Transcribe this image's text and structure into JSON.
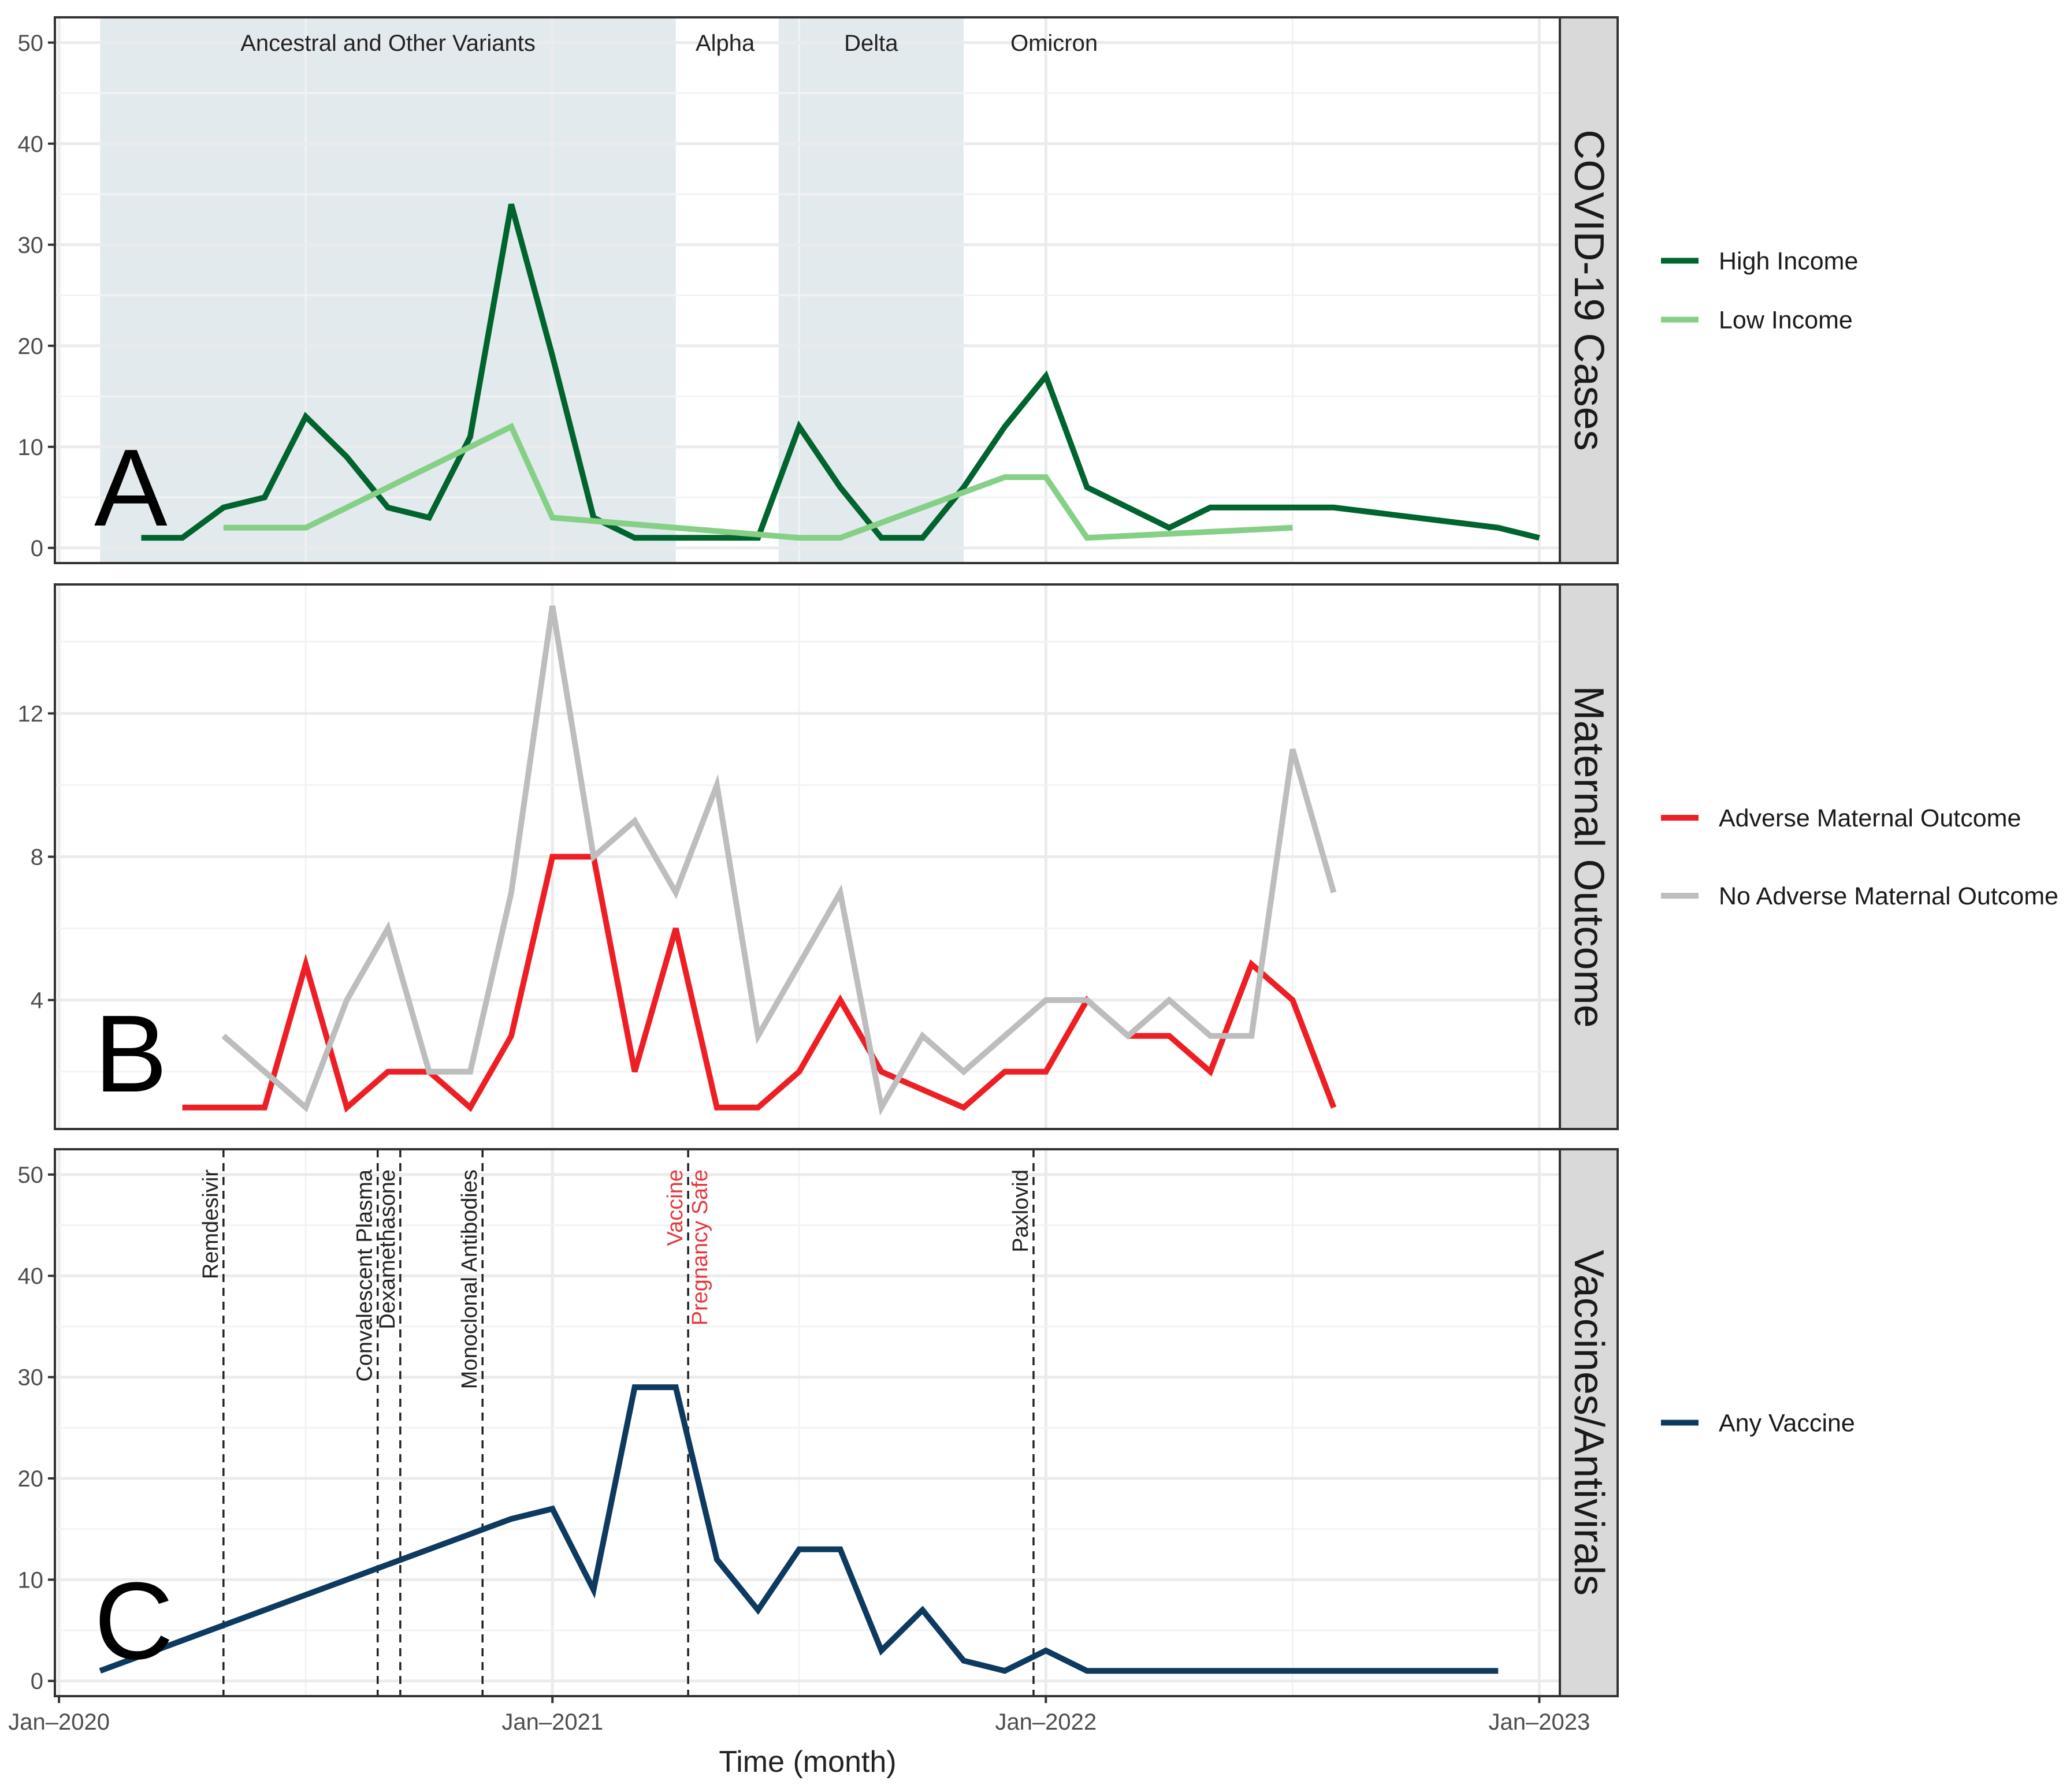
{
  "figure": {
    "xlabel": "Time (month)",
    "x_ticks": [
      {
        "label": "Jan–2020",
        "month": 0
      },
      {
        "label": "Jan–2021",
        "month": 12
      },
      {
        "label": "Jan–2022",
        "month": 24
      },
      {
        "label": "Jan–2023",
        "month": 36
      }
    ],
    "xlim": [
      -0.1,
      36.5
    ]
  },
  "colors": {
    "high_income": "#00642e",
    "low_income": "#86cf86",
    "adverse": "#ee1f24",
    "no_adverse": "#bdbdbd",
    "vaccine": "#0d3a5e",
    "variant_band": "#e3eaee",
    "strip": "#d9d9d9",
    "grid": "#ebebeb",
    "red_annotation": "#e23a3f"
  },
  "chart_data": [
    {
      "panel": "A",
      "type": "line",
      "strip_label": "COVID-19 Cases",
      "ylim": [
        -1.5,
        52.5
      ],
      "y_ticks": [
        0,
        10,
        20,
        30,
        40,
        50
      ],
      "variant_periods": [
        {
          "label": "Ancestral and Other Variants",
          "start": 1,
          "end": 15,
          "shaded": true
        },
        {
          "label": "Alpha",
          "start": 15,
          "end": 17.5,
          "shaded": false
        },
        {
          "label": "Delta",
          "start": 17.5,
          "end": 22,
          "shaded": true
        },
        {
          "label": "Omicron",
          "start": 22,
          "end": 36,
          "shaded": false
        }
      ],
      "series": [
        {
          "name": "High Income",
          "color_key": "high_income",
          "x": [
            2,
            3,
            4,
            5,
            6,
            7,
            8,
            9,
            10,
            11,
            12,
            13,
            14,
            15,
            16,
            17,
            18,
            19,
            20,
            21,
            22,
            23,
            24,
            25,
            26,
            27,
            28,
            29,
            30,
            31,
            32,
            33,
            34,
            35,
            36
          ],
          "y": [
            1,
            1,
            4,
            5,
            13,
            9,
            4,
            3,
            11,
            34,
            19,
            3,
            1,
            1,
            1,
            1,
            12,
            6,
            1,
            1,
            6,
            12,
            17,
            6,
            4,
            2,
            4,
            4,
            4,
            4,
            3.5,
            3,
            2.5,
            2,
            1
          ]
        },
        {
          "name": "Low Income",
          "color_key": "low_income",
          "x": [
            4,
            6,
            11,
            12,
            18,
            19,
            23,
            24,
            25,
            30
          ],
          "y": [
            2,
            2,
            12,
            3,
            1,
            1,
            7,
            7,
            1,
            2
          ]
        }
      ],
      "legend": [
        {
          "label": "High Income",
          "color_key": "high_income"
        },
        {
          "label": "Low Income",
          "color_key": "low_income"
        }
      ],
      "panel_letter": "A"
    },
    {
      "panel": "B",
      "type": "line",
      "strip_label": "Maternal Outcome",
      "ylim": [
        0.4,
        15.6
      ],
      "y_ticks": [
        4,
        8,
        12
      ],
      "series": [
        {
          "name": "Adverse Maternal Outcome",
          "color_key": "adverse",
          "x": [
            3,
            4,
            5,
            6,
            7,
            8,
            9,
            10,
            11,
            12,
            13,
            14,
            15,
            16,
            17,
            18,
            19,
            20,
            21,
            22,
            23,
            24,
            25,
            26,
            27,
            28,
            29,
            30,
            31
          ],
          "y": [
            1,
            1,
            1,
            5,
            1,
            2,
            2,
            1,
            3,
            8,
            8,
            2,
            6,
            1,
            1,
            2,
            4,
            2,
            1.5,
            1,
            2,
            2,
            4,
            3,
            3,
            2,
            5,
            4,
            1
          ]
        },
        {
          "name": "No Adverse Maternal Outcome",
          "color_key": "no_adverse",
          "x": [
            4,
            5,
            6,
            7,
            8,
            9,
            10,
            11,
            12,
            13,
            14,
            15,
            16,
            17,
            18,
            19,
            20,
            21,
            22,
            23,
            24,
            25,
            26,
            27,
            28,
            29,
            30,
            31
          ],
          "y": [
            3,
            2,
            1,
            4,
            6,
            2,
            2,
            7,
            15,
            8,
            9,
            7,
            10,
            3,
            5,
            7,
            1,
            3,
            2,
            3,
            4,
            4,
            3,
            4,
            3,
            3,
            11,
            7
          ]
        }
      ],
      "legend": [
        {
          "label": "Adverse Maternal Outcome",
          "color_key": "adverse"
        },
        {
          "label": "No Adverse Maternal Outcome",
          "color_key": "no_adverse"
        }
      ],
      "panel_letter": "B"
    },
    {
      "panel": "C",
      "type": "line",
      "strip_label": "Vaccines/Antivirals",
      "ylim": [
        -1.5,
        52.5
      ],
      "y_ticks": [
        0,
        10,
        20,
        30,
        40,
        50
      ],
      "events": [
        {
          "label": "Remdesivir",
          "x": 4,
          "red": false
        },
        {
          "label": "Convalescent Plasma",
          "x": 7.75,
          "red": false
        },
        {
          "label": "Dexamethasone",
          "x": 8.3,
          "red": false
        },
        {
          "label": "Monoclonal Antibodies",
          "x": 10.3,
          "red": false
        },
        {
          "label": "Vaccine",
          "label2": "Pregnancy Safe",
          "x": 15.3,
          "red": true
        },
        {
          "label": "Paxlovid",
          "x": 23.7,
          "red": false
        }
      ],
      "series": [
        {
          "name": "Any Vaccine",
          "color_key": "vaccine",
          "x": [
            1,
            11,
            12,
            13,
            14,
            15,
            16,
            17,
            18,
            19,
            20,
            21,
            22,
            23,
            24,
            25,
            26,
            27,
            28,
            29,
            30,
            31,
            32,
            33,
            34,
            35
          ],
          "y": [
            1,
            16,
            17,
            9,
            29,
            29,
            12,
            7,
            13,
            13,
            3,
            7,
            2,
            1,
            3,
            1,
            1,
            1,
            1,
            1,
            1,
            1,
            1,
            1,
            1,
            1
          ]
        }
      ],
      "legend": [
        {
          "label": "Any Vaccine",
          "color_key": "vaccine"
        }
      ],
      "panel_letter": "C"
    }
  ]
}
